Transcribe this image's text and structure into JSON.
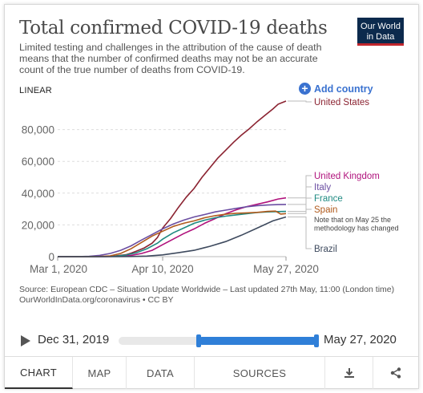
{
  "header": {
    "title": "Total confirmed COVID-19 deaths",
    "subtitle": "Limited testing and challenges in the attribution of the cause of death means that the number of confirmed deaths may not be an accurate count of the true number of deaths from COVID-19.",
    "logo_line1": "Our World",
    "logo_line2": "in Data"
  },
  "controls": {
    "scale": "LINEAR",
    "add_country": "Add country"
  },
  "source": {
    "line1": "Source: European CDC – Situation Update Worldwide – Last updated 27th May, 11:00 (London time)",
    "line2": "OurWorldInData.org/coronavirus • CC BY"
  },
  "timeline": {
    "start_date": "Dec 31, 2019",
    "end_date": "May 27, 2020",
    "selected_start": 0.4,
    "selected_end": 1.0
  },
  "tabs": [
    {
      "label": "CHART",
      "active": true
    },
    {
      "label": "MAP"
    },
    {
      "label": "DATA"
    },
    {
      "label": "SOURCES"
    }
  ],
  "icons": {
    "download": "download-icon",
    "share": "share-icon",
    "play": "play-icon",
    "add": "plus-circle-icon"
  },
  "chart_data": {
    "type": "line",
    "x_tick_labels": [
      "Mar 1, 2020",
      "Apr 10, 2020",
      "May 27, 2020"
    ],
    "x_ticks": [
      0,
      40,
      87
    ],
    "xlim": [
      0,
      87
    ],
    "ylim": [
      0,
      100000
    ],
    "y_ticks": [
      0,
      20000,
      40000,
      60000,
      80000
    ],
    "y_tick_labels": [
      "0",
      "20,000",
      "40,000",
      "60,000",
      "80,000"
    ],
    "grid": "horizontal dashed",
    "note": "Note that on May 25 the methodology has changed",
    "series": [
      {
        "name": "United States",
        "color": "#8b2331",
        "x": [
          0,
          10,
          18,
          22,
          26,
          28,
          30,
          33,
          36,
          38,
          40,
          43,
          46,
          49,
          52,
          55,
          58,
          61,
          64,
          67,
          70,
          73,
          76,
          79,
          82,
          84,
          87
        ],
        "y": [
          1,
          20,
          200,
          500,
          1200,
          2200,
          3500,
          5500,
          8500,
          12000,
          18000,
          24000,
          31000,
          37500,
          43000,
          50000,
          56000,
          62000,
          67000,
          72000,
          76500,
          80500,
          85000,
          89000,
          93000,
          96000,
          98000
        ]
      },
      {
        "name": "United Kingdom",
        "color": "#b0127c",
        "x": [
          0,
          14,
          18,
          24,
          28,
          32,
          36,
          40,
          44,
          48,
          52,
          56,
          60,
          64,
          68,
          72,
          76,
          80,
          84,
          87
        ],
        "y": [
          0,
          5,
          50,
          300,
          800,
          2000,
          4000,
          7500,
          11000,
          14500,
          17500,
          21000,
          24000,
          27000,
          29500,
          31500,
          33000,
          34500,
          36300,
          37000
        ]
      },
      {
        "name": "Italy",
        "color": "#6b4ea2",
        "x": [
          0,
          8,
          12,
          16,
          20,
          24,
          28,
          32,
          36,
          40,
          44,
          48,
          52,
          56,
          60,
          64,
          68,
          72,
          76,
          80,
          84,
          87
        ],
        "y": [
          0,
          30,
          200,
          800,
          2000,
          4000,
          6800,
          10500,
          14000,
          17500,
          20500,
          23000,
          25000,
          26500,
          28200,
          29300,
          30400,
          31400,
          32100,
          32500,
          32800,
          32900
        ]
      },
      {
        "name": "France",
        "color": "#1f8a82",
        "x": [
          0,
          12,
          18,
          22,
          26,
          30,
          34,
          38,
          40,
          44,
          48,
          52,
          56,
          60,
          64,
          68,
          72,
          76,
          80,
          84,
          87
        ],
        "y": [
          0,
          5,
          100,
          300,
          1000,
          2500,
          5000,
          8500,
          11000,
          15000,
          18000,
          21000,
          23000,
          24500,
          25500,
          26300,
          27000,
          27800,
          28200,
          28400,
          28500
        ]
      },
      {
        "name": "Spain",
        "color": "#b05a1c",
        "x": [
          0,
          12,
          16,
          20,
          24,
          28,
          32,
          36,
          40,
          44,
          48,
          52,
          56,
          60,
          64,
          68,
          72,
          76,
          80,
          83,
          85,
          87
        ],
        "y": [
          0,
          5,
          100,
          500,
          2000,
          5000,
          9000,
          13000,
          16000,
          19000,
          21000,
          22500,
          24500,
          25800,
          26700,
          27300,
          27600,
          27900,
          28500,
          28700,
          26800,
          27100
        ]
      },
      {
        "name": "Brazil",
        "color": "#3e4a5e",
        "x": [
          0,
          16,
          22,
          28,
          34,
          40,
          46,
          52,
          58,
          64,
          70,
          76,
          82,
          87
        ],
        "y": [
          0,
          0,
          10,
          100,
          350,
          1100,
          2500,
          4000,
          6500,
          9500,
          13500,
          18000,
          22500,
          25000
        ]
      }
    ]
  }
}
